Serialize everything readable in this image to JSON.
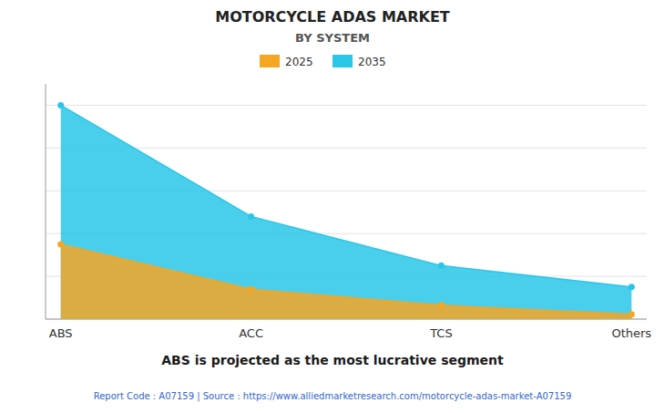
{
  "chart_data": {
    "type": "area",
    "title": "MOTORCYCLE ADAS MARKET",
    "subtitle": "BY SYSTEM",
    "annotation": "ABS is projected as the most lucrative segment",
    "footer": "Report Code : A07159  |  Source : https://www.alliedmarketresearch.com/motorcycle-adas-market-A07159",
    "categories": [
      "ABS",
      "ACC",
      "TCS",
      "Others"
    ],
    "series": [
      {
        "name": "2025",
        "color": "#F5A623",
        "values": [
          3.5,
          1.4,
          0.65,
          0.22
        ],
        "marker": "circle"
      },
      {
        "name": "2035",
        "color": "#29C6E8",
        "values": [
          10.0,
          4.8,
          2.5,
          1.5
        ],
        "marker": "circle"
      }
    ],
    "ylim": [
      0,
      11.0
    ],
    "yticks": [
      0,
      2,
      4,
      6,
      8,
      10
    ],
    "grid": true,
    "legend": "top",
    "tick_labels": "x",
    "stacked": false
  }
}
